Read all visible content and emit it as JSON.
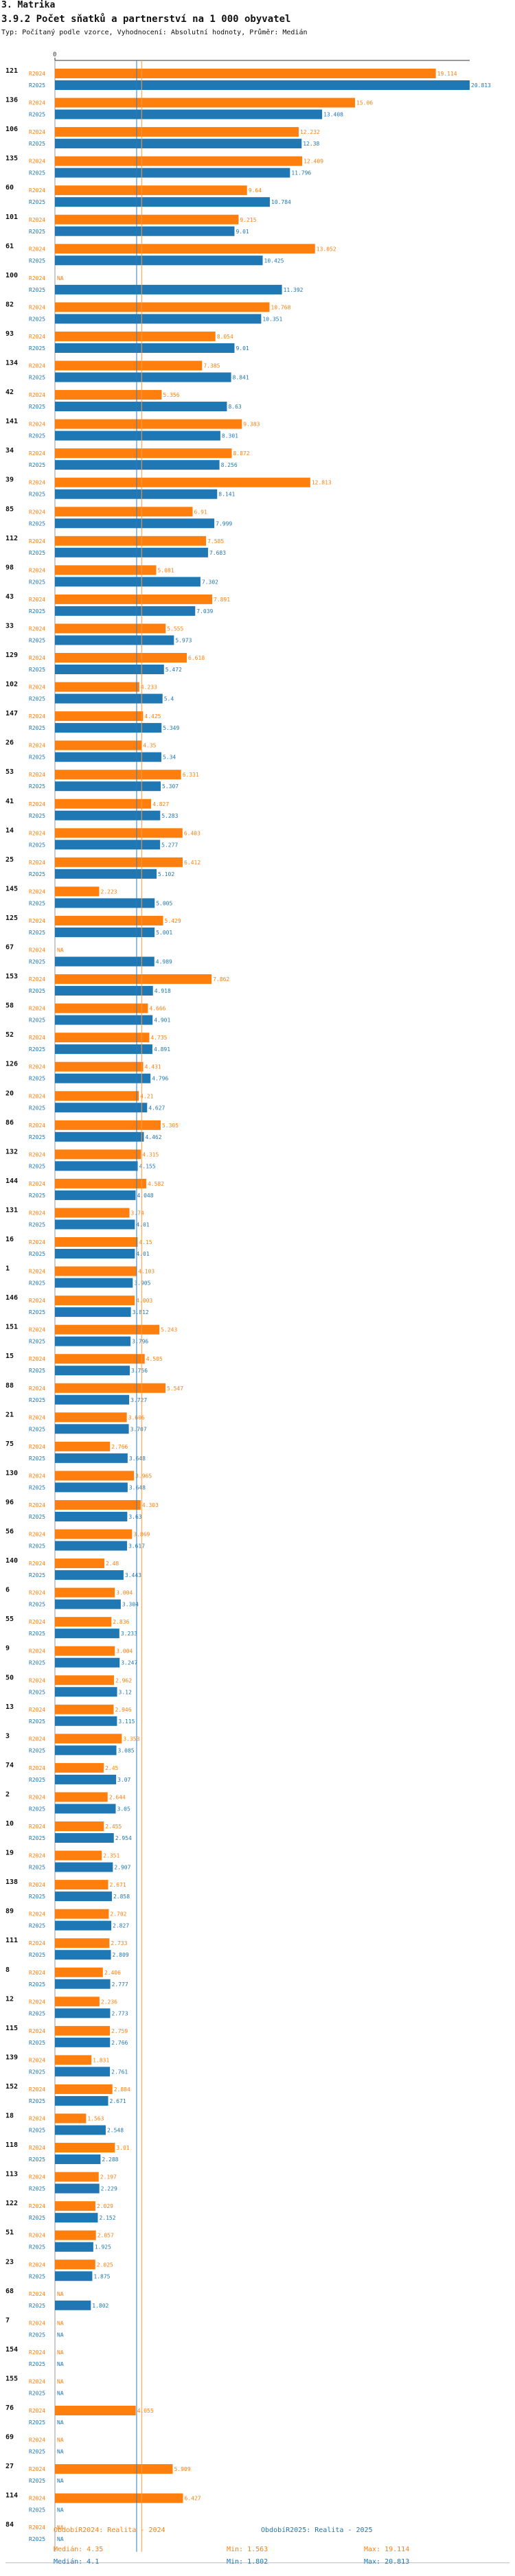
{
  "section_title": "3. Matrika",
  "chart_title": "3.9.2 Počet sňatků a partnerství na 1 000 obyvatel",
  "subtitle": "Typ: Počítaný podle vzorce, Vyhodnocení: Absolutní hodnoty, Průměr: Medián",
  "colors": {
    "s2024": "#ff7f0e",
    "s2025": "#1f77b4",
    "ref2024": "#ff9a3c",
    "ref2025": "#2c7fb8"
  },
  "legend": {
    "s2024_label": "ObdobíR2024: Realita - 2024",
    "s2025_label": "ObdobíR2025: Realita - 2025"
  },
  "stats": {
    "s2024_median": "Medián: 4.35",
    "s2024_min": "Min: 1.563",
    "s2024_max": "Max: 19.114",
    "s2025_median": "Medián: 4.1",
    "s2025_min": "Min: 1.802",
    "s2025_max": "Max: 20.813"
  },
  "chart_data": {
    "type": "bar",
    "orientation": "horizontal",
    "title": "3.9.2 Počet sňatků a partnerství na 1 000 obyvatel",
    "axis_tick_label": "0",
    "xlim": [
      0,
      20.813
    ],
    "series_labels": [
      "R2024",
      "R2025"
    ],
    "na_label": "NA",
    "medians": {
      "R2024": 4.35,
      "R2025": 4.1
    },
    "categories": [
      "121",
      "136",
      "106",
      "135",
      "60",
      "101",
      "61",
      "100",
      "82",
      "93",
      "134",
      "42",
      "141",
      "34",
      "39",
      "85",
      "112",
      "98",
      "43",
      "33",
      "129",
      "102",
      "147",
      "26",
      "53",
      "41",
      "14",
      "25",
      "145",
      "125",
      "67",
      "153",
      "58",
      "52",
      "126",
      "20",
      "86",
      "132",
      "144",
      "131",
      "16",
      "1",
      "146",
      "151",
      "15",
      "88",
      "21",
      "75",
      "130",
      "96",
      "56",
      "140",
      "6",
      "55",
      "9",
      "50",
      "13",
      "3",
      "74",
      "2",
      "10",
      "19",
      "138",
      "89",
      "111",
      "8",
      "12",
      "115",
      "139",
      "152",
      "18",
      "118",
      "113",
      "122",
      "51",
      "23",
      "68",
      "7",
      "154",
      "155",
      "76",
      "69",
      "27",
      "114",
      "84"
    ],
    "series": [
      {
        "name": "R2024",
        "values": [
          19.114,
          15.06,
          12.232,
          12.409,
          9.64,
          9.215,
          13.052,
          null,
          10.768,
          8.054,
          7.385,
          5.356,
          9.383,
          8.872,
          12.813,
          6.91,
          7.585,
          5.081,
          7.891,
          5.555,
          6.618,
          4.233,
          4.425,
          4.35,
          6.331,
          4.827,
          6.403,
          6.412,
          2.223,
          5.429,
          null,
          7.862,
          4.666,
          4.735,
          4.431,
          4.21,
          5.305,
          4.315,
          4.582,
          3.74,
          4.15,
          4.103,
          4.003,
          5.243,
          4.505,
          5.547,
          3.606,
          2.766,
          3.965,
          4.303,
          3.869,
          2.48,
          3.004,
          2.836,
          3.004,
          2.962,
          2.946,
          3.353,
          2.45,
          2.644,
          2.455,
          2.351,
          2.671,
          2.702,
          2.733,
          2.406,
          2.236,
          2.759,
          1.831,
          2.884,
          1.563,
          3.01,
          2.197,
          2.029,
          2.057,
          2.025,
          null,
          null,
          null,
          null,
          4.055,
          null,
          5.909,
          6.427,
          null
        ]
      },
      {
        "name": "R2025",
        "values": [
          20.813,
          13.408,
          12.38,
          11.796,
          10.784,
          9.01,
          10.425,
          11.392,
          10.351,
          9.01,
          8.841,
          8.63,
          8.301,
          8.256,
          8.141,
          7.999,
          7.683,
          7.302,
          7.039,
          5.973,
          5.472,
          5.4,
          5.349,
          5.34,
          5.307,
          5.283,
          5.277,
          5.102,
          5.005,
          5.001,
          4.989,
          4.918,
          4.901,
          4.891,
          4.796,
          4.627,
          4.462,
          4.155,
          4.048,
          4.01,
          4.01,
          3.905,
          3.812,
          3.796,
          3.756,
          3.727,
          3.707,
          3.648,
          3.648,
          3.63,
          3.617,
          3.443,
          3.304,
          3.233,
          3.247,
          3.12,
          3.115,
          3.085,
          3.07,
          3.05,
          2.954,
          2.907,
          2.858,
          2.827,
          2.809,
          2.777,
          2.773,
          2.766,
          2.761,
          2.671,
          2.548,
          2.288,
          2.229,
          2.152,
          1.925,
          1.875,
          1.802,
          null,
          null,
          null,
          null,
          null,
          null,
          null,
          null
        ]
      }
    ]
  }
}
